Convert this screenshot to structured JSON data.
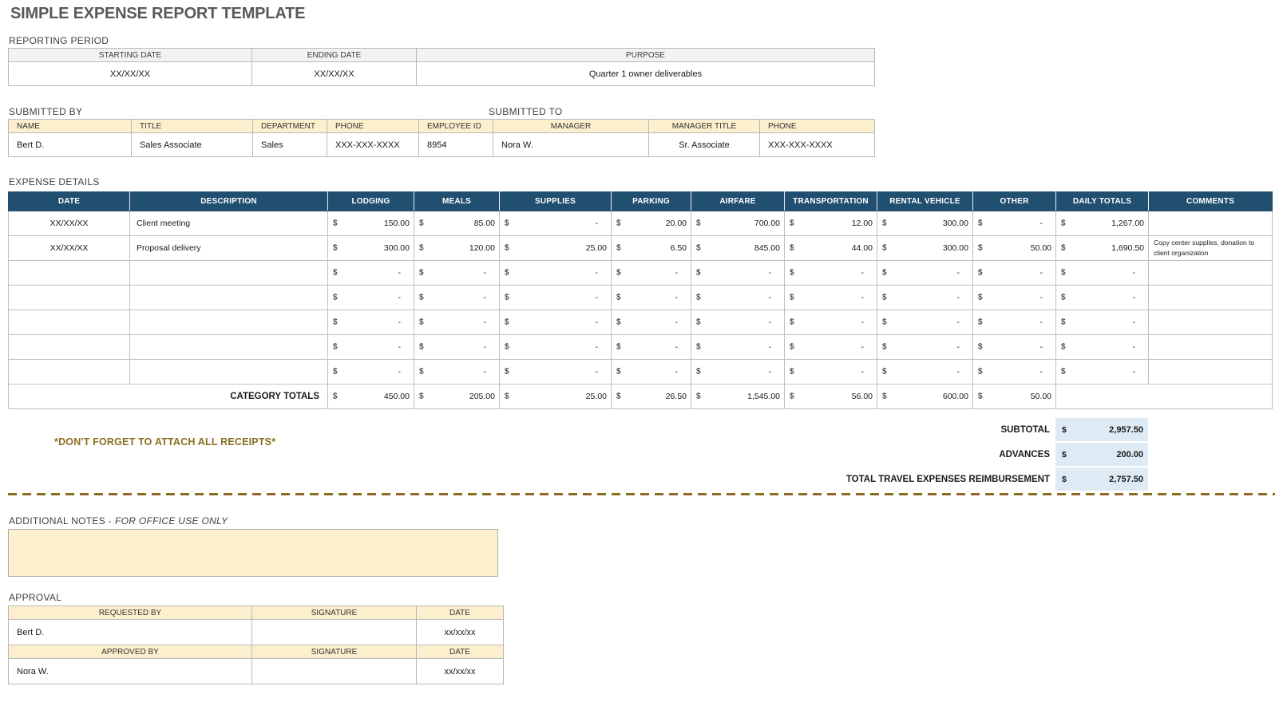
{
  "title": "SIMPLE EXPENSE REPORT TEMPLATE",
  "reporting_period": {
    "label": "REPORTING PERIOD",
    "headers": [
      "STARTING DATE",
      "ENDING DATE",
      "PURPOSE"
    ],
    "values": [
      "XX/XX/XX",
      "XX/XX/XX",
      "Quarter 1 owner deliverables"
    ]
  },
  "submitted_by": {
    "label": "SUBMITTED BY",
    "headers": [
      "NAME",
      "TITLE",
      "DEPARTMENT",
      "PHONE",
      "EMPLOYEE ID"
    ],
    "values": [
      "Bert D.",
      "Sales Associate",
      "Sales",
      "XXX-XXX-XXXX",
      "8954"
    ]
  },
  "submitted_to": {
    "label": "SUBMITTED TO",
    "headers": [
      "MANAGER",
      "MANAGER TITLE",
      "PHONE"
    ],
    "values": [
      "Nora W.",
      "Sr. Associate",
      "XXX-XXX-XXXX"
    ]
  },
  "expense_details": {
    "label": "EXPENSE DETAILS",
    "currency": "$",
    "columns": [
      "DATE",
      "DESCRIPTION",
      "LODGING",
      "MEALS",
      "SUPPLIES",
      "PARKING",
      "AIRFARE",
      "TRANSPORTATION",
      "RENTAL VEHICLE",
      "OTHER",
      "DAILY TOTALS",
      "COMMENTS"
    ],
    "rows": [
      {
        "date": "XX/XX/XX",
        "description": "Client meeting",
        "amounts": [
          "150.00",
          "85.00",
          "-",
          "20.00",
          "700.00",
          "12.00",
          "300.00",
          "-",
          "1,267.00"
        ],
        "comments": ""
      },
      {
        "date": "XX/XX/XX",
        "description": "Proposal delivery",
        "amounts": [
          "300.00",
          "120.00",
          "25.00",
          "6.50",
          "845.00",
          "44.00",
          "300.00",
          "50.00",
          "1,690.50"
        ],
        "comments": "Copy center supplies, donation to client organization"
      },
      {
        "date": "",
        "description": "",
        "amounts": [
          "-",
          "-",
          "-",
          "-",
          "-",
          "-",
          "-",
          "-",
          "-"
        ],
        "comments": ""
      },
      {
        "date": "",
        "description": "",
        "amounts": [
          "-",
          "-",
          "-",
          "-",
          "-",
          "-",
          "-",
          "-",
          "-"
        ],
        "comments": ""
      },
      {
        "date": "",
        "description": "",
        "amounts": [
          "-",
          "-",
          "-",
          "-",
          "-",
          "-",
          "-",
          "-",
          "-"
        ],
        "comments": ""
      },
      {
        "date": "",
        "description": "",
        "amounts": [
          "-",
          "-",
          "-",
          "-",
          "-",
          "-",
          "-",
          "-",
          "-"
        ],
        "comments": ""
      },
      {
        "date": "",
        "description": "",
        "amounts": [
          "-",
          "-",
          "-",
          "-",
          "-",
          "-",
          "-",
          "-",
          "-"
        ],
        "comments": ""
      }
    ],
    "category_totals": {
      "label": "CATEGORY TOTALS",
      "amounts": [
        "450.00",
        "205.00",
        "25.00",
        "26.50",
        "1,545.00",
        "56.00",
        "600.00",
        "50.00"
      ]
    }
  },
  "summary": {
    "currency": "$",
    "rows": [
      {
        "label": "SUBTOTAL",
        "amount": "2,957.50"
      },
      {
        "label": "ADVANCES",
        "amount": "200.00"
      },
      {
        "label": "TOTAL TRAVEL EXPENSES REIMBURSEMENT",
        "amount": "2,757.50"
      }
    ]
  },
  "receipts_note": "*DON'T FORGET TO ATTACH ALL RECEIPTS*",
  "additional_notes": {
    "label": "ADDITIONAL NOTES -",
    "label_italic": "FOR OFFICE USE ONLY",
    "content": ""
  },
  "approval": {
    "label": "APPROVAL",
    "sections": [
      {
        "headers": [
          "REQUESTED BY",
          "SIGNATURE",
          "DATE"
        ],
        "name": "Bert D.",
        "signature": "",
        "date": "xx/xx/xx"
      },
      {
        "headers": [
          "APPROVED BY",
          "SIGNATURE",
          "DATE"
        ],
        "name": "Nora W.",
        "signature": "",
        "date": "xx/xx/xx"
      }
    ]
  },
  "colors": {
    "header_blue": "#204F70",
    "light_blue": "#DEEAF4",
    "cream": "#FBEFCD",
    "gold": "#8A6D1E",
    "title_gray": "#595959"
  }
}
